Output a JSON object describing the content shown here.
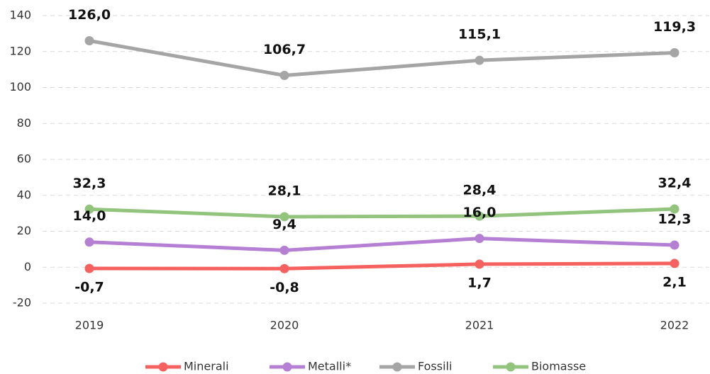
{
  "chart_data": {
    "type": "line",
    "categories": [
      "2019",
      "2020",
      "2021",
      "2022"
    ],
    "series": [
      {
        "name": "Minerali",
        "color": "#f4615e",
        "values": [
          -0.7,
          -0.8,
          1.7,
          2.1
        ],
        "value_labels": [
          "-0,7",
          "-0,8",
          "1,7",
          "2,1"
        ]
      },
      {
        "name": "Metalli*",
        "color": "#b57fd3",
        "values": [
          14.0,
          9.4,
          16.0,
          12.3
        ],
        "value_labels": [
          "14,0",
          "9,4",
          "16,0",
          "12,3"
        ]
      },
      {
        "name": "Fossili",
        "color": "#a5a5a5",
        "values": [
          126.0,
          106.7,
          115.1,
          119.3
        ],
        "value_labels": [
          "126,0",
          "106,7",
          "115,1",
          "119,3"
        ]
      },
      {
        "name": "Biomasse",
        "color": "#93c47d",
        "values": [
          32.3,
          28.1,
          28.4,
          32.4
        ],
        "value_labels": [
          "32,3",
          "28,1",
          "28,4",
          "32,4"
        ]
      }
    ],
    "ylim": [
      -20,
      140
    ],
    "yticks": [
      -20,
      0,
      20,
      40,
      60,
      80,
      100,
      120,
      140
    ],
    "grid": true,
    "legend": "bottom"
  }
}
